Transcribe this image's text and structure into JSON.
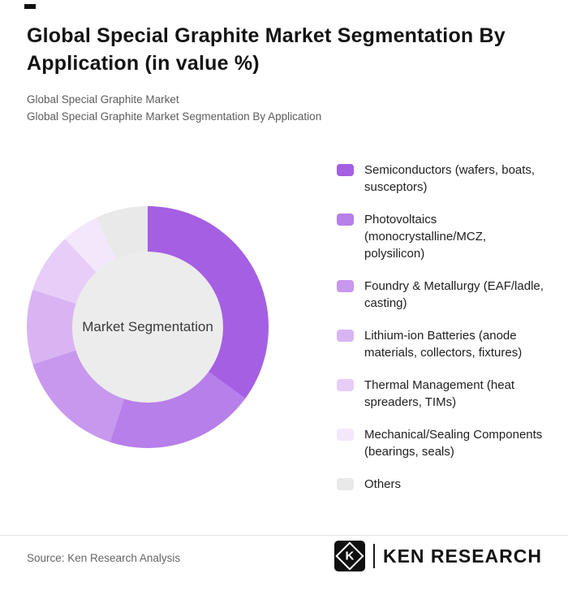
{
  "page": {
    "title_line1": "Global Special Graphite Market Segmentation By",
    "title_line2": "Application (in value %)",
    "subtitle1": "Global Special Graphite Market",
    "subtitle2": "Global Special Graphite Market Segmentation By Application",
    "source": "Source: Ken Research Analysis",
    "brand": {
      "mark_letter": "K",
      "name": "KEN RESEARCH"
    }
  },
  "chart_data": {
    "type": "pie",
    "donut": true,
    "title": "Global Special Graphite Market Segmentation By Application (in value %)",
    "center_label": "Market Segmentation",
    "legend_position": "right",
    "start_angle_deg": 0,
    "direction": "clockwise",
    "slices": [
      {
        "label": "Semiconductors (wafers, boats, susceptors)",
        "value": 35,
        "color": "#a55fe3"
      },
      {
        "label": "Photovoltaics (monocrystalline/MCZ, polysilicon)",
        "value": 20,
        "color": "#b77fe9"
      },
      {
        "label": "Foundry & Metallurgy (EAF/ladle, casting)",
        "value": 15,
        "color": "#c898ee"
      },
      {
        "label": "Lithium-ion Batteries (anode materials, collectors, fixtures)",
        "value": 10,
        "color": "#d9b4f3"
      },
      {
        "label": "Thermal Management (heat spreaders, TIMs)",
        "value": 8,
        "color": "#e7cdf8"
      },
      {
        "label": "Mechanical/Sealing Components (bearings, seals)",
        "value": 5,
        "color": "#f3e7fc"
      },
      {
        "label": "Others",
        "value": 7,
        "color": "#e9e9ea"
      }
    ],
    "hole_fill": "#ececec"
  }
}
